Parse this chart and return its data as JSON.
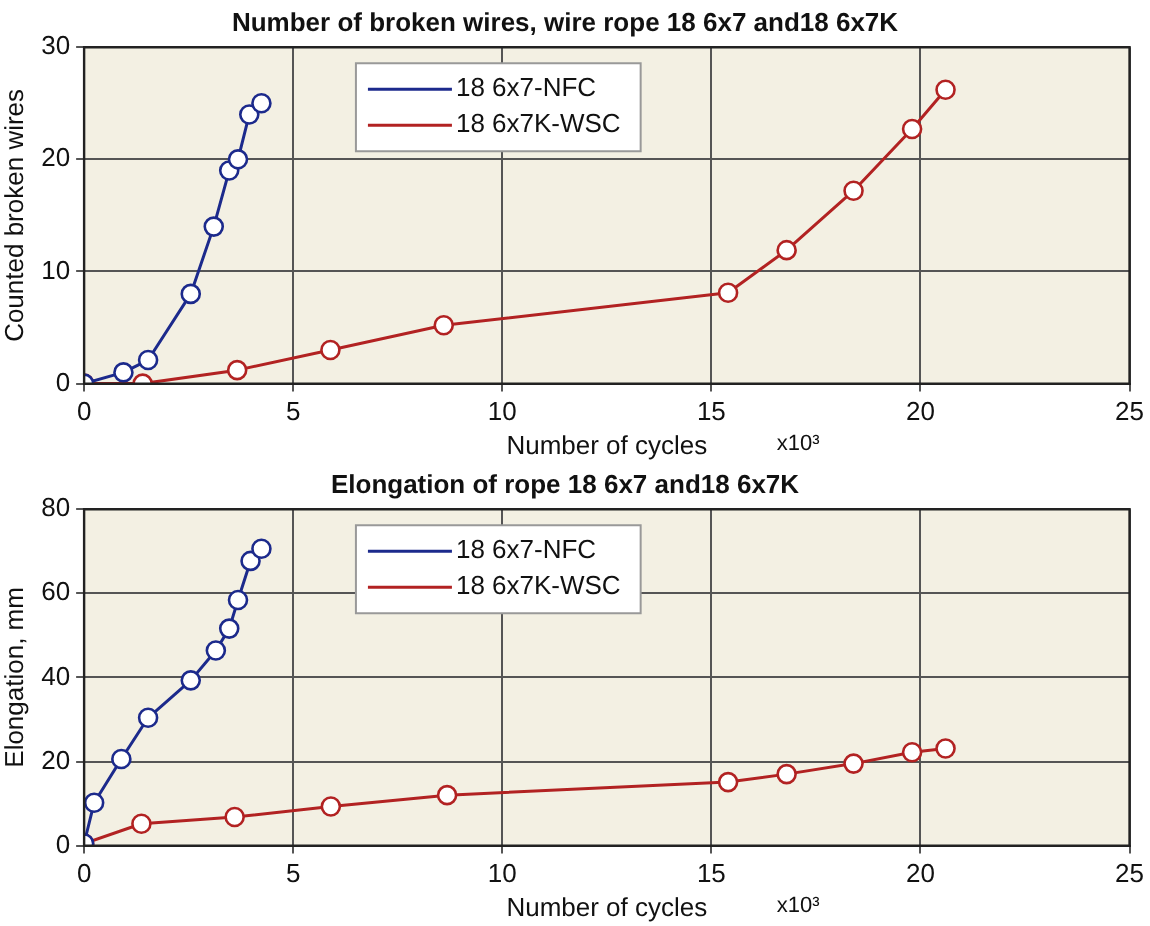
{
  "chart_data": [
    {
      "type": "line",
      "title": "Number of broken wires, wire rope 18 6x7 and18 6x7K",
      "xlabel": "Number of cycles",
      "ylabel": "Counted broken wires",
      "annotations": [
        "x10³"
      ],
      "xlim": [
        0,
        25
      ],
      "xticks": [
        0,
        5,
        10,
        15,
        20,
        25
      ],
      "ylim": [
        0,
        30
      ],
      "yticks": [
        0,
        10,
        20,
        30
      ],
      "grid": true,
      "legend": "top",
      "marker": "circle",
      "line_style": "solid",
      "series": [
        {
          "name": "18 6x7-NFC",
          "color": "#1c2a8c",
          "x": [
            0,
            0.94,
            1.53,
            2.55,
            3.1,
            3.47,
            3.68,
            3.95,
            4.24
          ],
          "values": [
            0,
            1,
            2.1,
            8,
            14,
            19,
            20,
            24,
            25
          ]
        },
        {
          "name": "18 6x7K-WSC",
          "color": "#b22222",
          "x": [
            0,
            1.4,
            3.66,
            5.89,
            8.6,
            15.4,
            16.8,
            18.4,
            19.8,
            20.6
          ],
          "values": [
            0,
            0,
            1.2,
            3,
            5.2,
            8.1,
            11.9,
            17.2,
            22.7,
            26.2
          ]
        }
      ]
    },
    {
      "type": "line",
      "title": "Elongation of rope 18 6x7 and18 6x7K",
      "xlabel": "Number of cycles",
      "ylabel": "Elongation, mm",
      "annotations": [
        "x10³"
      ],
      "xlim": [
        0,
        25
      ],
      "xticks": [
        0,
        5,
        10,
        15,
        20,
        25
      ],
      "ylim": [
        0,
        80
      ],
      "yticks": [
        0,
        20,
        40,
        60,
        80
      ],
      "grid": true,
      "legend": "top",
      "marker": "circle",
      "line_style": "solid",
      "series": [
        {
          "name": "18 6x7-NFC",
          "color": "#1c2a8c",
          "x": [
            0,
            0.24,
            0.89,
            1.53,
            2.55,
            3.15,
            3.47,
            3.68,
            3.98,
            4.24
          ],
          "values": [
            0.5,
            10.2,
            20.6,
            30.4,
            39.3,
            46.4,
            51.6,
            58.4,
            67.7,
            70.6
          ]
        },
        {
          "name": "18 6x7K-WSC",
          "color": "#b22222",
          "x": [
            0,
            1.37,
            3.6,
            5.9,
            8.68,
            15.4,
            16.8,
            18.4,
            19.8,
            20.6
          ],
          "values": [
            0.5,
            5.2,
            6.8,
            9.3,
            12,
            15.1,
            17,
            19.5,
            22.2,
            23.1
          ]
        }
      ]
    }
  ]
}
